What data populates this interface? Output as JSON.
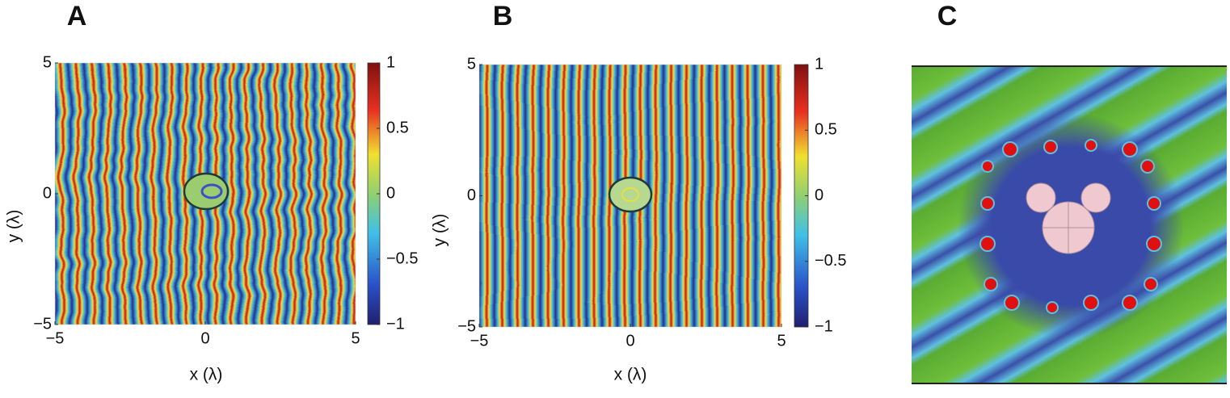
{
  "panels": [
    {
      "label": "A",
      "xlabel": "x (λ)",
      "ylabel": "y (λ)",
      "xlim": [
        -5,
        5
      ],
      "ylim": [
        -5,
        5
      ],
      "xticks": [
        {
          "value": -5,
          "label": "−5"
        },
        0,
        5
      ],
      "yticks": [
        {
          "value": -5,
          "label": "−5"
        },
        0,
        5
      ],
      "colorbar": {
        "lim": [
          -1,
          1
        ],
        "ticks": [
          {
            "value": -1,
            "label": "−1"
          },
          {
            "value": -0.5,
            "label": "−0.5"
          },
          0,
          0.5,
          1
        ]
      }
    },
    {
      "label": "B",
      "xlabel": "x (λ)",
      "ylabel": "y (λ)",
      "xlim": [
        -5,
        5
      ],
      "ylim": [
        -5,
        5
      ],
      "xticks": [
        {
          "value": -5,
          "label": "−5"
        },
        0,
        5
      ],
      "yticks": [
        {
          "value": -5,
          "label": "−5"
        },
        0,
        5
      ],
      "colorbar": {
        "lim": [
          -1,
          1
        ],
        "ticks": [
          {
            "value": -1,
            "label": "−1"
          },
          {
            "value": -0.5,
            "label": "−0.5"
          },
          0,
          0.5,
          1
        ]
      }
    },
    {
      "label": "C"
    }
  ]
}
